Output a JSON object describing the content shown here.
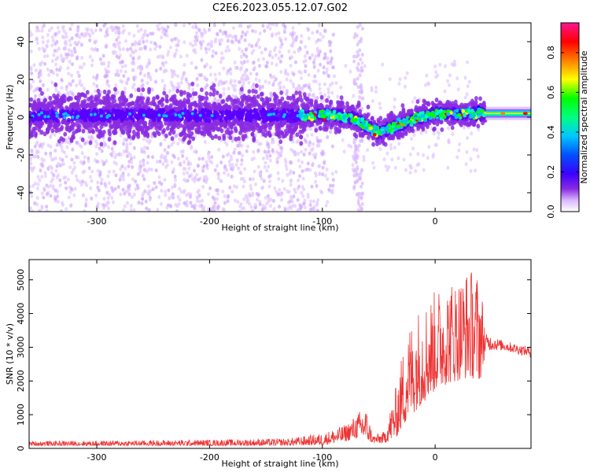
{
  "title": "C2E6.2023.055.12.07.G02",
  "chart_data": [
    {
      "type": "heatmap",
      "xlabel": "Height of straight line (km)",
      "ylabel": "Frequency (Hz)",
      "xlim": [
        -360,
        85
      ],
      "ylim": [
        -50,
        50
      ],
      "xticks": [
        -300,
        -200,
        -100,
        0
      ],
      "yticks": [
        -40,
        -20,
        0,
        20,
        40
      ],
      "colorbar": {
        "label": "Normalized spectral amplitude",
        "range": [
          0,
          0.95
        ],
        "ticks": [
          0.0,
          0.2,
          0.4,
          0.6,
          0.8
        ],
        "tick_labels": [
          "0.0",
          "0.2",
          "0.4",
          "0.6",
          "0.8"
        ],
        "colormap": [
          "#ffffff",
          "#d9b8ff",
          "#8a2be2",
          "#5a00ff",
          "#0000ff",
          "#00bfff",
          "#00ffbf",
          "#00ff00",
          "#ffff00",
          "#ff8c00",
          "#ff0000",
          "#ff1493"
        ]
      },
      "center_frequency_track": {
        "x": [
          -360,
          -250,
          -150,
          -110,
          -90,
          -75,
          -60,
          -50,
          -40,
          -20,
          0,
          20,
          40,
          50,
          85
        ],
        "y": [
          1,
          1,
          1,
          1,
          1,
          0,
          -5,
          -8,
          -6,
          -1,
          2,
          2,
          2,
          2,
          2
        ]
      }
    },
    {
      "type": "line",
      "xlabel": "Height of straight line (km)",
      "ylabel": "SNR (10 * v/v)",
      "xlim": [
        -360,
        85
      ],
      "ylim": [
        0,
        5600
      ],
      "xticks": [
        -300,
        -200,
        -100,
        0
      ],
      "yticks": [
        0,
        1000,
        2000,
        3000,
        4000,
        5000
      ],
      "color": "#ee3333",
      "envelope": {
        "x": [
          -360,
          -300,
          -200,
          -130,
          -100,
          -80,
          -70,
          -62,
          -55,
          -45,
          -35,
          -25,
          -15,
          0,
          10,
          20,
          30,
          40,
          45,
          60,
          85
        ],
        "low": [
          80,
          80,
          80,
          80,
          100,
          200,
          300,
          250,
          150,
          150,
          300,
          800,
          1200,
          1700,
          1900,
          2000,
          2100,
          2000,
          2900,
          2900,
          2700
        ],
        "high": [
          220,
          230,
          260,
          300,
          450,
          700,
          1000,
          1300,
          400,
          500,
          1800,
          3600,
          4200,
          4700,
          5000,
          5100,
          5400,
          5200,
          3400,
          3200,
          3000
        ]
      }
    }
  ]
}
